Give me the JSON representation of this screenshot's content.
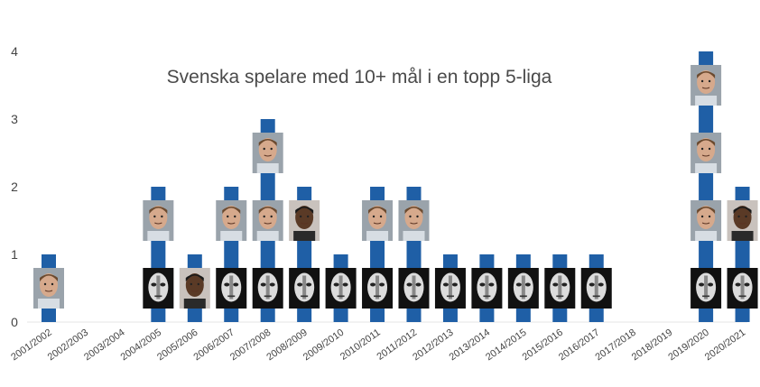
{
  "colors": {
    "bar": "#1f5fa6",
    "skin_light": "#d6a98c",
    "skin_dark": "#5a3a26",
    "marker_bg": "#111111",
    "marker_face": "#dcdcdc"
  },
  "chart_data": {
    "type": "bar",
    "title": "Svenska spelare med 10+ mål i en topp 5-liga",
    "xlabel": "",
    "ylabel": "",
    "ylim": [
      0,
      4
    ],
    "yticks": [
      "0",
      "1",
      "2",
      "3",
      "4"
    ],
    "grid": false,
    "legend": "none",
    "categories": [
      "2001/2002",
      "2002/2003",
      "2003/2004",
      "2004/2005",
      "2005/2006",
      "2006/2007",
      "2007/2008",
      "2008/2009",
      "2009/2010",
      "2010/2011",
      "2011/2012",
      "2012/2013",
      "2013/2014",
      "2014/2015",
      "2015/2016",
      "2016/2017",
      "2017/2018",
      "2018/2019",
      "2019/2020",
      "2020/2021"
    ],
    "values": [
      1,
      0,
      0,
      2,
      1,
      2,
      3,
      2,
      1,
      2,
      2,
      1,
      1,
      1,
      1,
      1,
      0,
      0,
      4,
      2
    ],
    "markers": [
      [
        "photo-light"
      ],
      [],
      [],
      [
        "mask",
        "photo-light"
      ],
      [
        "photo-dark"
      ],
      [
        "mask",
        "photo-light"
      ],
      [
        "mask",
        "photo-light",
        "photo-light"
      ],
      [
        "mask",
        "photo-dark"
      ],
      [
        "mask"
      ],
      [
        "mask",
        "photo-light"
      ],
      [
        "mask",
        "photo-light"
      ],
      [
        "mask"
      ],
      [
        "mask"
      ],
      [
        "mask"
      ],
      [
        "mask"
      ],
      [
        "mask"
      ],
      [],
      [],
      [
        "mask",
        "photo-light",
        "photo-light",
        "photo-light"
      ],
      [
        "mask",
        "photo-dark"
      ]
    ]
  }
}
